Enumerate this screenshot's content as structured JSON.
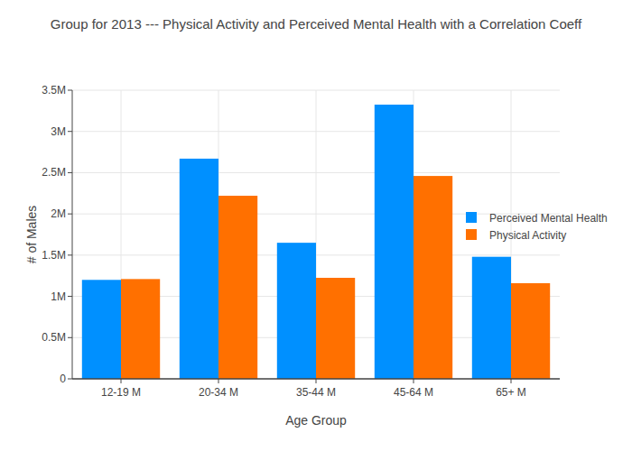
{
  "chart_data": {
    "type": "bar",
    "title": "Group for 2013 --- Physical Activity and Perceived Mental Health with a Correlation Coeff",
    "x_label": "Age Group",
    "y_label": "# of Males",
    "categories": [
      "12-19 M",
      "20-34 M",
      "35-44 M",
      "45-64 M",
      "65+ M"
    ],
    "series": [
      {
        "name": "Perceived Mental Health",
        "color": "#0090ff",
        "values": [
          1200000,
          2670000,
          1650000,
          3325000,
          1480000
        ]
      },
      {
        "name": "Physical Activity",
        "color": "#ff7000",
        "values": [
          1210000,
          2220000,
          1225000,
          2460000,
          1160000
        ]
      }
    ],
    "ylim": [
      0,
      3500000
    ],
    "yticks": [
      0,
      {
        "value": 500000,
        "label": "0.5M"
      },
      {
        "value": 1000000,
        "label": "1M"
      },
      {
        "value": 1500000,
        "label": "1.5M"
      },
      {
        "value": 2000000,
        "label": "2M"
      },
      {
        "value": 2500000,
        "label": "2.5M"
      },
      {
        "value": 3000000,
        "label": "3M"
      },
      {
        "value": 3500000,
        "label": "3.5M"
      }
    ],
    "grid": true,
    "legend": "right"
  }
}
